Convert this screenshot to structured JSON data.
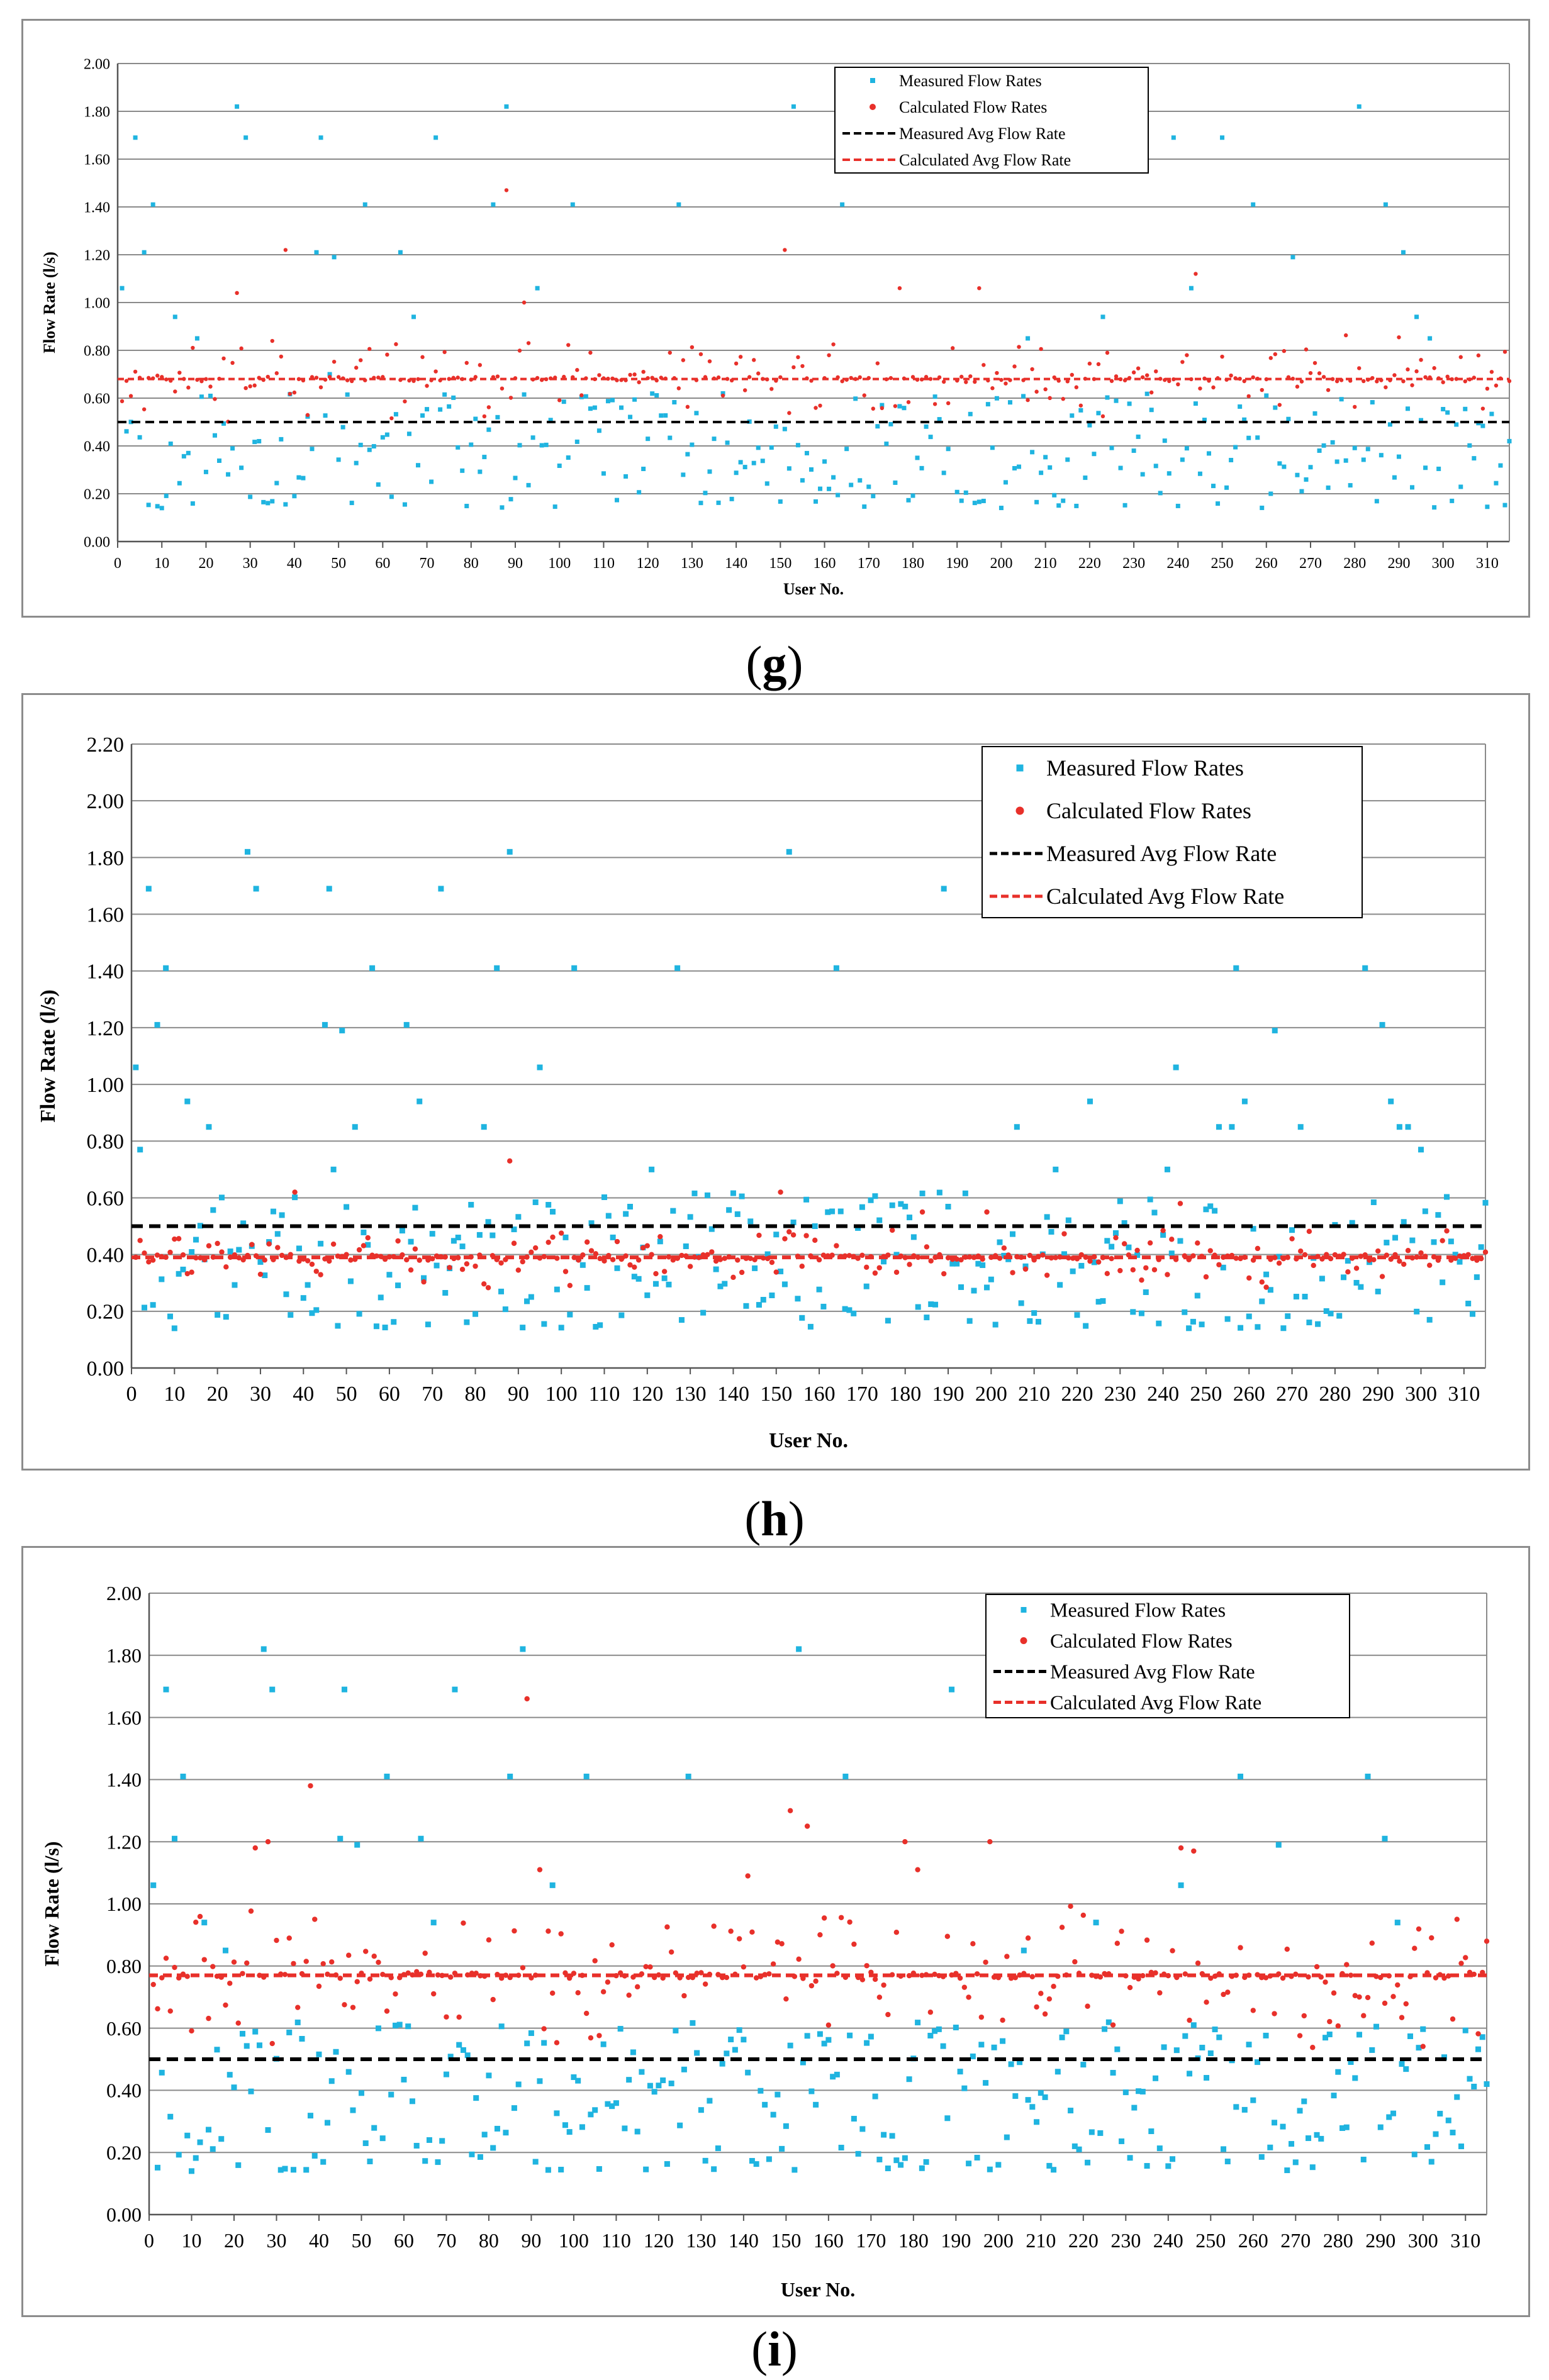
{
  "chart_data": [
    {
      "type": "scatter",
      "panel_label": "g",
      "title": "",
      "xlabel": "User No.",
      "ylabel": "Flow Rate (l/s)",
      "xlim": [
        0,
        315
      ],
      "ylim": [
        0,
        2.0
      ],
      "y_ticks": [
        "0.00",
        "0.20",
        "0.40",
        "0.60",
        "0.80",
        "1.00",
        "1.20",
        "1.40",
        "1.60",
        "1.80",
        "2.00"
      ],
      "x_ticks": [
        "0",
        "10",
        "20",
        "30",
        "40",
        "50",
        "60",
        "70",
        "80",
        "90",
        "100",
        "110",
        "120",
        "130",
        "140",
        "150",
        "160",
        "170",
        "180",
        "190",
        "200",
        "210",
        "220",
        "230",
        "240",
        "250",
        "260",
        "270",
        "280",
        "290",
        "300",
        "310"
      ],
      "grid": true,
      "legend_position": "top-center",
      "legend": [
        "Measured Flow Rates",
        "Calculated Flow Rates",
        "Measured Avg Flow Rate",
        "Calculated Avg Flow Rate"
      ],
      "measured_avg": 0.5,
      "calculated_avg": 0.68,
      "calc_mean": 0.68,
      "calc_spread": 0.12,
      "series": [
        {
          "name": "Measured Flow Rates",
          "color": "#1fb4e0",
          "marker": "square",
          "outliers": [
            [
              1,
              1.06
            ],
            [
              4,
              1.69
            ],
            [
              6,
              1.21
            ],
            [
              8,
              1.41
            ],
            [
              10,
              0.14
            ],
            [
              13,
              0.94
            ],
            [
              18,
              0.85
            ],
            [
              27,
              1.82
            ],
            [
              29,
              1.69
            ],
            [
              45,
              1.21
            ],
            [
              46,
              1.69
            ],
            [
              48,
              0.7
            ],
            [
              49,
              1.19
            ],
            [
              56,
              1.41
            ],
            [
              64,
              1.21
            ],
            [
              67,
              0.94
            ],
            [
              72,
              1.69
            ],
            [
              88,
              1.82
            ],
            [
              85,
              1.41
            ],
            [
              95,
              1.06
            ],
            [
              103,
              1.41
            ],
            [
              127,
              1.41
            ],
            [
              153,
              1.82
            ],
            [
              164,
              1.41
            ],
            [
              189,
              1.69
            ],
            [
              206,
              0.85
            ],
            [
              223,
              0.94
            ],
            [
              239,
              1.69
            ],
            [
              243,
              1.06
            ],
            [
              250,
              1.69
            ],
            [
              257,
              1.41
            ],
            [
              261,
              0.2
            ],
            [
              266,
              1.19
            ],
            [
              281,
              1.82
            ],
            [
              287,
              1.41
            ],
            [
              291,
              1.21
            ],
            [
              294,
              0.94
            ],
            [
              297,
              0.85
            ],
            [
              302,
              0.17
            ],
            [
              315,
              0.42
            ]
          ]
        },
        {
          "name": "Calculated Flow Rates",
          "color": "#e8302a",
          "marker": "circle",
          "outliers": [
            [
              38,
              1.22
            ],
            [
              88,
              1.47
            ],
            [
              151,
              1.22
            ],
            [
              195,
              1.06
            ],
            [
              244,
              1.12
            ],
            [
              177,
              1.06
            ],
            [
              92,
              1.0
            ],
            [
              27,
              1.04
            ]
          ]
        },
        {
          "name": "Measured Avg Flow Rate",
          "color": "#000000",
          "style": "dashed",
          "value": 0.5
        },
        {
          "name": "Calculated Avg Flow Rate",
          "color": "#e8302a",
          "style": "dashed",
          "value": 0.68
        }
      ]
    },
    {
      "type": "scatter",
      "panel_label": "h",
      "title": "",
      "xlabel": "User No.",
      "ylabel": "Flow Rate (l/s)",
      "xlim": [
        0,
        315
      ],
      "ylim": [
        0,
        2.2
      ],
      "y_ticks": [
        "0.00",
        "0.20",
        "0.40",
        "0.60",
        "0.80",
        "1.00",
        "1.20",
        "1.40",
        "1.60",
        "1.80",
        "2.00",
        "2.20"
      ],
      "x_ticks": [
        "0",
        "10",
        "20",
        "30",
        "40",
        "50",
        "60",
        "70",
        "80",
        "90",
        "100",
        "110",
        "120",
        "130",
        "140",
        "150",
        "160",
        "170",
        "180",
        "190",
        "200",
        "210",
        "220",
        "230",
        "240",
        "250",
        "260",
        "270",
        "280",
        "290",
        "300",
        "310"
      ],
      "grid": true,
      "legend_position": "top-right",
      "legend": [
        "Measured Flow Rates",
        "Calculated Flow Rates",
        "Measured Avg Flow Rate",
        "Calculated Avg Flow Rate"
      ],
      "measured_avg": 0.5,
      "calculated_avg": 0.39,
      "calc_mean": 0.39,
      "calc_spread": 0.07,
      "series": [
        {
          "name": "Measured Flow Rates",
          "color": "#1fb4e0",
          "marker": "square",
          "outliers": [
            [
              1,
              1.06
            ],
            [
              2,
              0.77
            ],
            [
              4,
              1.69
            ],
            [
              6,
              1.21
            ],
            [
              8,
              1.41
            ],
            [
              10,
              0.14
            ],
            [
              13,
              0.94
            ],
            [
              18,
              0.85
            ],
            [
              27,
              1.82
            ],
            [
              29,
              1.69
            ],
            [
              45,
              1.21
            ],
            [
              46,
              1.69
            ],
            [
              47,
              0.7
            ],
            [
              49,
              1.19
            ],
            [
              52,
              0.85
            ],
            [
              56,
              1.41
            ],
            [
              64,
              1.21
            ],
            [
              67,
              0.94
            ],
            [
              72,
              1.69
            ],
            [
              82,
              0.85
            ],
            [
              85,
              1.41
            ],
            [
              88,
              1.82
            ],
            [
              95,
              1.06
            ],
            [
              103,
              1.41
            ],
            [
              121,
              0.7
            ],
            [
              127,
              1.41
            ],
            [
              153,
              1.82
            ],
            [
              164,
              1.41
            ],
            [
              189,
              1.69
            ],
            [
              206,
              0.85
            ],
            [
              215,
              0.7
            ],
            [
              223,
              0.94
            ],
            [
              241,
              0.7
            ],
            [
              243,
              1.06
            ],
            [
              253,
              0.85
            ],
            [
              256,
              0.85
            ],
            [
              257,
              1.41
            ],
            [
              259,
              0.94
            ],
            [
              266,
              1.19
            ],
            [
              272,
              0.85
            ],
            [
              287,
              1.41
            ],
            [
              291,
              1.21
            ],
            [
              293,
              0.94
            ],
            [
              295,
              0.85
            ],
            [
              297,
              0.85
            ],
            [
              300,
              0.77
            ],
            [
              302,
              0.17
            ]
          ]
        },
        {
          "name": "Calculated Flow Rates",
          "color": "#e8302a",
          "marker": "circle",
          "outliers": [
            [
              38,
              0.62
            ],
            [
              88,
              0.73
            ],
            [
              151,
              0.62
            ],
            [
              244,
              0.58
            ],
            [
              184,
              0.55
            ],
            [
              199,
              0.55
            ]
          ]
        },
        {
          "name": "Measured Avg Flow Rate",
          "color": "#000000",
          "style": "dashed",
          "value": 0.5
        },
        {
          "name": "Calculated Avg Flow Rate",
          "color": "#e8302a",
          "style": "dashed",
          "value": 0.39
        }
      ]
    },
    {
      "type": "scatter",
      "panel_label": "i",
      "title": "",
      "xlabel": "User No.",
      "ylabel": "Flow Rate (l/s)",
      "xlim": [
        0,
        315
      ],
      "ylim": [
        0,
        2.0
      ],
      "y_ticks": [
        "0.00",
        "0.20",
        "0.40",
        "0.60",
        "0.80",
        "1.00",
        "1.20",
        "1.40",
        "1.60",
        "1.80",
        "2.00"
      ],
      "x_ticks": [
        "0",
        "10",
        "20",
        "30",
        "40",
        "50",
        "60",
        "70",
        "80",
        "90",
        "100",
        "110",
        "120",
        "130",
        "140",
        "150",
        "160",
        "170",
        "180",
        "190",
        "200",
        "210",
        "220",
        "230",
        "240",
        "250",
        "260",
        "270",
        "280",
        "290",
        "300",
        "310"
      ],
      "grid": true,
      "legend_position": "top-right",
      "legend": [
        "Measured Flow Rates",
        "Calculated Flow Rates",
        "Measured Avg Flow Rate",
        "Calculated Avg Flow Rate"
      ],
      "measured_avg": 0.5,
      "calculated_avg": 0.77,
      "calc_mean": 0.77,
      "calc_spread": 0.16,
      "series": [
        {
          "name": "Measured Flow Rates",
          "color": "#1fb4e0",
          "marker": "square",
          "outliers": [
            [
              1,
              1.06
            ],
            [
              4,
              1.69
            ],
            [
              6,
              1.21
            ],
            [
              8,
              1.41
            ],
            [
              10,
              0.14
            ],
            [
              13,
              0.94
            ],
            [
              18,
              0.85
            ],
            [
              27,
              1.82
            ],
            [
              29,
              1.69
            ],
            [
              45,
              1.21
            ],
            [
              46,
              1.69
            ],
            [
              49,
              1.19
            ],
            [
              56,
              1.41
            ],
            [
              64,
              1.21
            ],
            [
              67,
              0.94
            ],
            [
              72,
              1.69
            ],
            [
              85,
              1.41
            ],
            [
              88,
              1.82
            ],
            [
              95,
              1.06
            ],
            [
              103,
              1.41
            ],
            [
              127,
              1.41
            ],
            [
              153,
              1.82
            ],
            [
              164,
              1.41
            ],
            [
              189,
              1.69
            ],
            [
              206,
              0.85
            ],
            [
              223,
              0.94
            ],
            [
              243,
              1.06
            ],
            [
              257,
              1.41
            ],
            [
              266,
              1.19
            ],
            [
              287,
              1.41
            ],
            [
              291,
              1.21
            ],
            [
              294,
              0.94
            ],
            [
              302,
              0.17
            ],
            [
              315,
              0.42
            ]
          ]
        },
        {
          "name": "Calculated Flow Rates",
          "color": "#e8302a",
          "marker": "circle",
          "outliers": [
            [
              38,
              1.38
            ],
            [
              89,
              1.66
            ],
            [
              151,
              1.3
            ],
            [
              155,
              1.25
            ],
            [
              198,
              1.2
            ],
            [
              178,
              1.2
            ],
            [
              92,
              1.11
            ],
            [
              181,
              1.11
            ],
            [
              243,
              1.18
            ],
            [
              246,
              1.17
            ],
            [
              28,
              1.2
            ],
            [
              25,
              1.18
            ],
            [
              141,
              1.09
            ]
          ]
        },
        {
          "name": "Measured Avg Flow Rate",
          "color": "#000000",
          "style": "dashed",
          "value": 0.5
        },
        {
          "name": "Calculated Avg Flow Rate",
          "color": "#e8302a",
          "style": "dashed",
          "value": 0.77
        }
      ]
    }
  ]
}
